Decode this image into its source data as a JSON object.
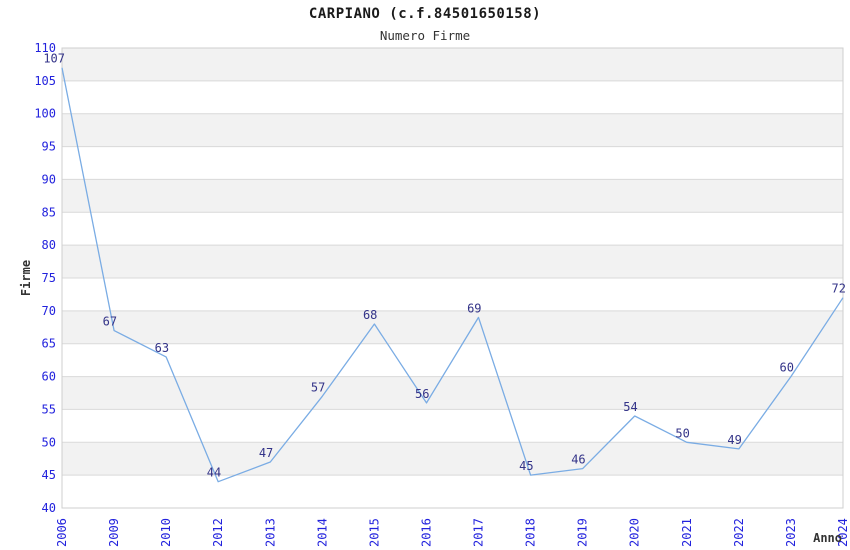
{
  "header": {
    "title": "CARPIANO (c.f.84501650158)",
    "subtitle": "Numero Firme"
  },
  "chart_data": {
    "type": "line",
    "title": "CARPIANO (c.f.84501650158)",
    "subtitle": "Numero Firme",
    "xlabel": "Anno",
    "ylabel": "Firme",
    "categories": [
      "2006",
      "2009",
      "2010",
      "2012",
      "2013",
      "2014",
      "2015",
      "2016",
      "2017",
      "2018",
      "2019",
      "2020",
      "2021",
      "2022",
      "2023",
      "2024"
    ],
    "values": [
      107,
      67,
      63,
      44,
      47,
      57,
      68,
      56,
      69,
      45,
      46,
      54,
      50,
      49,
      60,
      72
    ],
    "ylim": [
      40,
      110
    ],
    "ytick_step": 5,
    "grid": true,
    "alternating_bands": true,
    "legend": "none",
    "colors": {
      "line": "#7aace4",
      "tick_label": "#2222dd",
      "data_label": "#333388",
      "band": "#f2f2f2",
      "gridline": "#d9d9d9",
      "plot_border": "#cfcfcf",
      "text": "#333333"
    }
  }
}
